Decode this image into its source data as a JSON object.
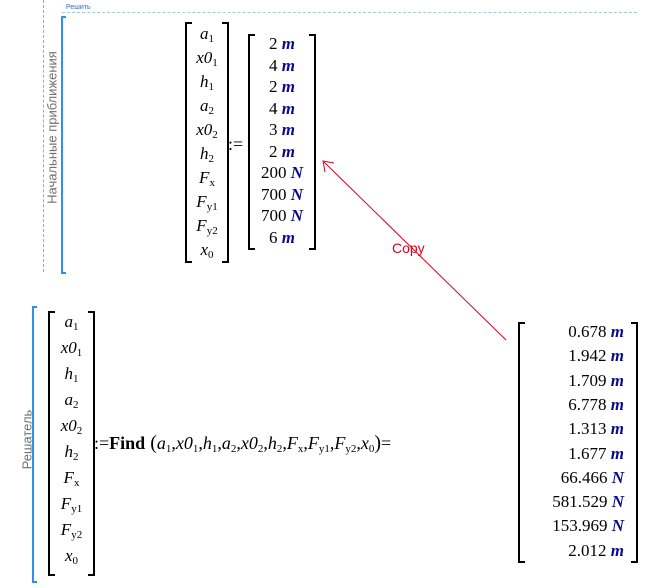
{
  "region1": {
    "tag_label": "Решить",
    "side_label": "Начальные приближения",
    "lhs": [
      [
        "a",
        "1"
      ],
      [
        "x0",
        "1"
      ],
      [
        "h",
        "1"
      ],
      [
        "a",
        "2"
      ],
      [
        "x0",
        "2"
      ],
      [
        "h",
        "2"
      ],
      [
        "F",
        "x"
      ],
      [
        "F",
        "y1"
      ],
      [
        "F",
        "y2"
      ],
      [
        "x",
        "0"
      ]
    ],
    "assign_op": ":=",
    "rhs": [
      {
        "value": "2",
        "unit": "m"
      },
      {
        "value": "4",
        "unit": "m"
      },
      {
        "value": "2",
        "unit": "m"
      },
      {
        "value": "4",
        "unit": "m"
      },
      {
        "value": "3",
        "unit": "m"
      },
      {
        "value": "2",
        "unit": "m"
      },
      {
        "value": "200",
        "unit": "N"
      },
      {
        "value": "700",
        "unit": "N"
      },
      {
        "value": "700",
        "unit": "N"
      },
      {
        "value": "6",
        "unit": "m"
      }
    ]
  },
  "annotation": {
    "text": "Copy",
    "color": "#e0001a"
  },
  "region2": {
    "side_label": "Решатель",
    "lhs": [
      [
        "a",
        "1"
      ],
      [
        "x0",
        "1"
      ],
      [
        "h",
        "1"
      ],
      [
        "a",
        "2"
      ],
      [
        "x0",
        "2"
      ],
      [
        "h",
        "2"
      ],
      [
        "F",
        "x"
      ],
      [
        "F",
        "y1"
      ],
      [
        "F",
        "y2"
      ],
      [
        "x",
        "0"
      ]
    ],
    "assign_op": ":=",
    "function": "Find",
    "args": [
      [
        "a",
        "1"
      ],
      [
        "x0",
        "1"
      ],
      [
        "h",
        "1"
      ],
      [
        "a",
        "2"
      ],
      [
        "x0",
        "2"
      ],
      [
        "h",
        "2"
      ],
      [
        "F",
        "x"
      ],
      [
        "F",
        "y1"
      ],
      [
        "F",
        "y2"
      ],
      [
        "x",
        "0"
      ]
    ],
    "eval_op": "=",
    "result": [
      {
        "value": "0.678",
        "unit": "m"
      },
      {
        "value": "1.942",
        "unit": "m"
      },
      {
        "value": "1.709",
        "unit": "m"
      },
      {
        "value": "6.778",
        "unit": "m"
      },
      {
        "value": "1.313",
        "unit": "m"
      },
      {
        "value": "1.677",
        "unit": "m"
      },
      {
        "value": "66.466",
        "unit": "N"
      },
      {
        "value": "581.529",
        "unit": "N"
      },
      {
        "value": "153.969",
        "unit": "N"
      },
      {
        "value": "2.012",
        "unit": "m"
      }
    ]
  },
  "colors": {
    "unit": "#0a0a8c",
    "region_bracket": "#2e8ff0",
    "annotation": "#e0001a"
  }
}
